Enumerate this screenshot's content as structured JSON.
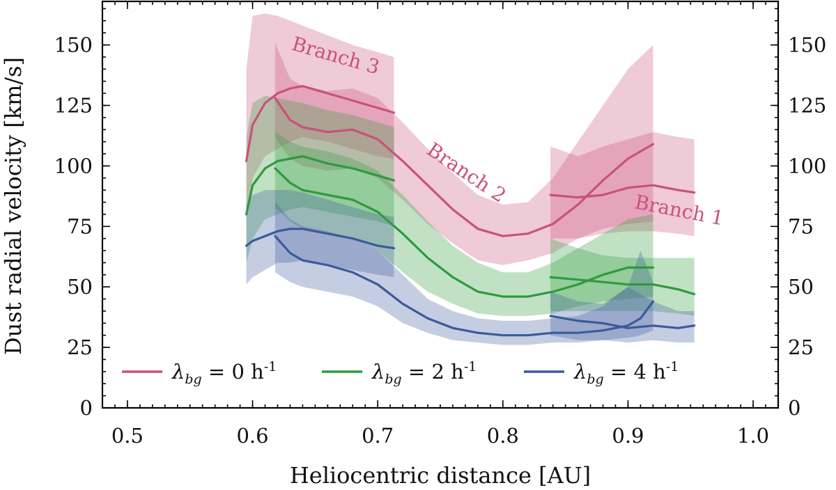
{
  "chart_data": {
    "type": "line",
    "xlabel": "Heliocentric distance [AU]",
    "ylabel": "Dust radial velocity [km/s]",
    "xlim": [
      0.48,
      1.02
    ],
    "ylim": [
      0,
      168
    ],
    "xticks": [
      0.5,
      0.6,
      0.7,
      0.8,
      0.9,
      1.0
    ],
    "xtick_labels": [
      "0.5",
      "0.6",
      "0.7",
      "0.8",
      "0.9",
      "1.0"
    ],
    "yticks": [
      0,
      25,
      50,
      75,
      100,
      125,
      150
    ],
    "ytick_labels": [
      "0",
      "25",
      "50",
      "75",
      "100",
      "125",
      "150"
    ],
    "right_axis_ticks": true,
    "legend": {
      "placement": "bottom-left",
      "entries": [
        {
          "prefix": "λ",
          "sub": "bg",
          "suffix": " = 0 h",
          "sup": "-1",
          "color": "#c9517a"
        },
        {
          "prefix": "λ",
          "sub": "bg",
          "suffix": " = 2 h",
          "sup": "-1",
          "color": "#2e9a3c"
        },
        {
          "prefix": "λ",
          "sub": "bg",
          "suffix": " = 4 h",
          "sup": "-1",
          "color": "#3a5a9a"
        }
      ]
    },
    "annotations": [
      {
        "text": "Branch 3",
        "x": 0.665,
        "y": 143,
        "rotation": 16,
        "color": "#c9517a"
      },
      {
        "text": "Branch 2",
        "x": 0.768,
        "y": 95,
        "rotation": 34,
        "color": "#c9517a"
      },
      {
        "text": "Branch 1",
        "x": 0.94,
        "y": 79,
        "rotation": 11,
        "color": "#c9517a"
      }
    ],
    "series": [
      {
        "name": "λbg = 0 h-1, Branch 3",
        "color": "#c9517a",
        "x": [
          0.595,
          0.6,
          0.61,
          0.62,
          0.63,
          0.64,
          0.66,
          0.68,
          0.7,
          0.713
        ],
        "y": [
          102,
          117,
          126,
          130,
          132,
          133,
          130,
          127,
          124,
          122
        ],
        "lower": [
          78,
          95,
          104,
          107,
          110,
          112,
          110,
          107,
          104,
          103
        ],
        "upper": [
          140,
          162,
          163,
          162,
          160,
          158,
          154,
          150,
          147,
          145
        ]
      },
      {
        "name": "λbg = 0 h-1, Branch 2",
        "color": "#c9517a",
        "x": [
          0.618,
          0.63,
          0.64,
          0.66,
          0.68,
          0.7,
          0.72,
          0.74,
          0.76,
          0.78,
          0.8,
          0.82,
          0.84,
          0.86,
          0.88,
          0.9,
          0.92
        ],
        "y": [
          128,
          119,
          116,
          114,
          115,
          111,
          102,
          92,
          82,
          74,
          71,
          72,
          76,
          84,
          94,
          103,
          109
        ],
        "lower": [
          112,
          103,
          100,
          98,
          99,
          95,
          86,
          76,
          68,
          61,
          59,
          61,
          64,
          70,
          74,
          76,
          77
        ],
        "upper": [
          151,
          136,
          133,
          131,
          132,
          128,
          118,
          107,
          97,
          88,
          84,
          85,
          95,
          110,
          125,
          140,
          150
        ]
      },
      {
        "name": "λbg = 0 h-1, Branch 1",
        "color": "#c9517a",
        "x": [
          0.838,
          0.86,
          0.88,
          0.9,
          0.92,
          0.94,
          0.953
        ],
        "y": [
          88,
          87,
          88,
          91,
          92,
          90,
          89
        ],
        "lower": [
          70,
          70,
          72,
          73,
          73,
          72,
          71
        ],
        "upper": [
          108,
          104,
          108,
          111,
          114,
          112,
          111
        ]
      },
      {
        "name": "λbg = 2 h-1, Branch 3",
        "color": "#2e9a3c",
        "x": [
          0.595,
          0.6,
          0.61,
          0.62,
          0.63,
          0.64,
          0.66,
          0.68,
          0.7,
          0.713
        ],
        "y": [
          80,
          92,
          99,
          102,
          103,
          104,
          101,
          99,
          96,
          94
        ],
        "lower": [
          60,
          70,
          78,
          80,
          82,
          83,
          81,
          79,
          77,
          75
        ],
        "upper": [
          112,
          126,
          129,
          128,
          127,
          126,
          123,
          121,
          118,
          116
        ]
      },
      {
        "name": "λbg = 2 h-1, Branch 2",
        "color": "#2e9a3c",
        "x": [
          0.618,
          0.63,
          0.64,
          0.66,
          0.68,
          0.7,
          0.72,
          0.74,
          0.76,
          0.78,
          0.8,
          0.82,
          0.84,
          0.86,
          0.88,
          0.9,
          0.92
        ],
        "y": [
          99,
          93,
          90,
          88,
          86,
          81,
          72,
          62,
          54,
          48,
          46,
          46,
          48,
          51,
          55,
          58,
          58
        ],
        "lower": [
          83,
          77,
          74,
          72,
          70,
          65,
          56,
          48,
          43,
          39,
          38,
          38,
          39,
          42,
          44,
          45,
          46
        ],
        "upper": [
          114,
          110,
          108,
          106,
          103,
          98,
          88,
          77,
          67,
          60,
          56,
          56,
          60,
          66,
          72,
          78,
          80
        ]
      },
      {
        "name": "λbg = 2 h-1, Branch 1",
        "color": "#2e9a3c",
        "x": [
          0.838,
          0.86,
          0.88,
          0.9,
          0.92,
          0.94,
          0.953
        ],
        "y": [
          54,
          53,
          52,
          51,
          51,
          49,
          47
        ],
        "lower": [
          40,
          40,
          40,
          40,
          40,
          39,
          38
        ],
        "upper": [
          70,
          66,
          63,
          62,
          62,
          62,
          62
        ]
      },
      {
        "name": "λbg = 4 h-1, Branch 3",
        "color": "#3a5a9a",
        "x": [
          0.595,
          0.6,
          0.61,
          0.62,
          0.63,
          0.64,
          0.66,
          0.68,
          0.7,
          0.713
        ],
        "y": [
          67,
          69,
          71,
          73,
          74,
          74,
          72,
          70,
          67,
          66
        ],
        "lower": [
          51,
          54,
          57,
          60,
          60,
          61,
          59,
          57,
          55,
          54
        ],
        "upper": [
          84,
          88,
          90,
          90,
          90,
          89,
          86,
          83,
          80,
          79
        ]
      },
      {
        "name": "λbg = 4 h-1, Branch 2",
        "color": "#3a5a9a",
        "x": [
          0.618,
          0.63,
          0.64,
          0.66,
          0.68,
          0.7,
          0.72,
          0.74,
          0.76,
          0.78,
          0.8,
          0.82,
          0.84,
          0.86,
          0.88,
          0.9,
          0.91,
          0.92
        ],
        "y": [
          71,
          64,
          61,
          59,
          56,
          51,
          43,
          37,
          33,
          31,
          30,
          30,
          31,
          31,
          32,
          34,
          37,
          44
        ],
        "lower": [
          56,
          52,
          50,
          48,
          46,
          42,
          35,
          31,
          28,
          27,
          26,
          26,
          27,
          27,
          28,
          29,
          30,
          32
        ],
        "upper": [
          85,
          78,
          75,
          73,
          70,
          65,
          55,
          45,
          40,
          37,
          36,
          36,
          37,
          38,
          42,
          50,
          65,
          52
        ]
      },
      {
        "name": "λbg = 4 h-1, Branch 1",
        "color": "#3a5a9a",
        "x": [
          0.838,
          0.86,
          0.88,
          0.9,
          0.92,
          0.94,
          0.953
        ],
        "y": [
          38,
          36,
          35,
          33,
          34,
          33,
          34
        ],
        "lower": [
          30,
          28,
          28,
          27,
          28,
          27,
          27
        ],
        "upper": [
          48,
          44,
          43,
          50,
          44,
          40,
          40
        ]
      }
    ]
  }
}
